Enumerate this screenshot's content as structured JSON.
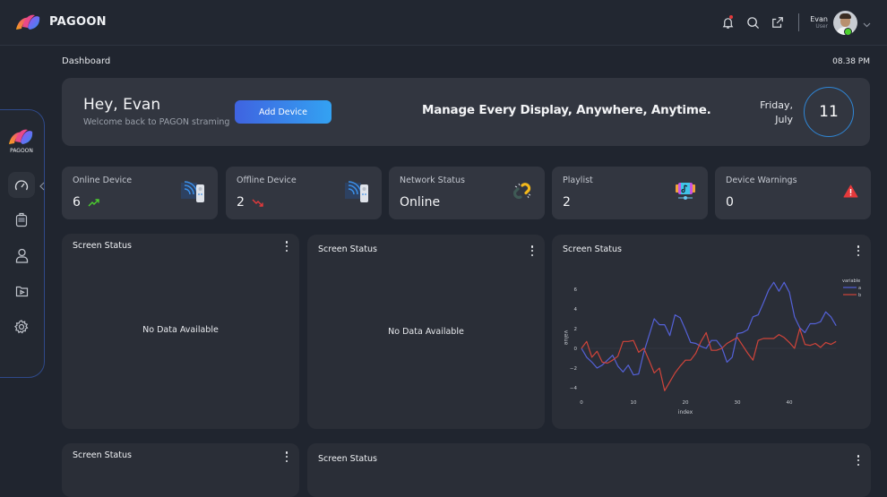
{
  "app": {
    "brand_name": "PAGOON",
    "sidebar_brand": "PAGOON"
  },
  "header": {
    "icons": [
      "bell-icon",
      "search-icon",
      "external-link-icon"
    ],
    "notification_dot_color": "#e5393b",
    "user": {
      "name": "Evan",
      "role": "User",
      "status_color": "#4ccf2e"
    }
  },
  "sidebar": {
    "items": [
      {
        "name": "dashboard",
        "icon": "speedometer-icon",
        "active": true
      },
      {
        "name": "devices",
        "icon": "device-icon",
        "active": false
      },
      {
        "name": "users",
        "icon": "user-icon",
        "active": false
      },
      {
        "name": "media",
        "icon": "media-folder-icon",
        "active": false
      },
      {
        "name": "settings",
        "icon": "gear-icon",
        "active": false
      }
    ]
  },
  "breadcrumb": "Dashboard",
  "clock": "08.38 PM",
  "hero": {
    "greeting": "Hey, Evan",
    "subtitle": "Welcome back to PAGON straming",
    "add_device_label": "Add Device",
    "tagline": "Manage Every Display, Anywhere, Anytime.",
    "day": "Friday,",
    "month": "July",
    "date": "11",
    "accent": "#2f86d6"
  },
  "stats": [
    {
      "label": "Online Device",
      "value": "6",
      "trend": "up",
      "trend_color": "#4ccf2e",
      "icon": "wifi-device-icon"
    },
    {
      "label": "Offline Device",
      "value": "2",
      "trend": "down",
      "trend_color": "#e5393b",
      "icon": "wifi-device-icon"
    },
    {
      "label": "Network Status",
      "value": "Online",
      "icon": "broken-link-icon"
    },
    {
      "label": "Playlist",
      "value": "2",
      "icon": "playlist-music-icon"
    },
    {
      "label": "Device Warnings",
      "value": "0",
      "icon": "warning-triangle-icon",
      "icon_color": "#e5393b"
    }
  ],
  "cards": [
    {
      "title": "Screen Status",
      "content": "No Data Available"
    },
    {
      "title": "Screen Status",
      "content": "No Data Available"
    },
    {
      "title": "Screen Status",
      "content": "chart"
    },
    {
      "title": "Screen Status",
      "content": ""
    },
    {
      "title": "Screen Status",
      "content": ""
    }
  ],
  "chart_data": {
    "type": "line",
    "title": "Screen Status",
    "xlabel": "index",
    "ylabel": "value",
    "xlim": [
      0,
      49
    ],
    "ylim": [
      -4.5,
      7
    ],
    "xticks": [
      0,
      10,
      20,
      30,
      40
    ],
    "yticks": [
      -4,
      -2,
      0,
      2,
      4,
      6
    ],
    "grid": false,
    "legend": {
      "title": "variable",
      "position": "top-right",
      "entries": [
        "a",
        "b"
      ]
    },
    "x": [
      0,
      1,
      2,
      3,
      4,
      5,
      6,
      7,
      8,
      9,
      10,
      11,
      12,
      13,
      14,
      15,
      16,
      17,
      18,
      19,
      20,
      21,
      22,
      23,
      24,
      25,
      26,
      27,
      28,
      29,
      30,
      31,
      32,
      33,
      34,
      35,
      36,
      37,
      38,
      39,
      40,
      41,
      42,
      43,
      44,
      45,
      46,
      47,
      48,
      49
    ],
    "series": [
      {
        "name": "a",
        "color": "#5461d8",
        "values": [
          0,
          -0.9,
          -1.4,
          -2.0,
          -1.7,
          -1.2,
          -0.7,
          -1.8,
          -2.4,
          -1.7,
          -2.7,
          -2.6,
          -0.4,
          1.3,
          3.0,
          2.4,
          2.4,
          1.3,
          3.4,
          3.1,
          1.9,
          0.6,
          0.5,
          0.2,
          0.0,
          0.8,
          0.8,
          0.1,
          -1.4,
          -0.9,
          1.5,
          1.6,
          1.9,
          3.2,
          3.4,
          4.6,
          5.9,
          6.7,
          5.8,
          6.7,
          5.7,
          3.2,
          2.1,
          1.6,
          2.5,
          2.5,
          2.7,
          3.7,
          3.2,
          2.3
        ]
      },
      {
        "name": "b",
        "color": "#d1443a",
        "values": [
          0,
          0.7,
          -0.9,
          -0.3,
          -1.4,
          -1.5,
          -1.2,
          -0.8,
          0.7,
          0.7,
          0.8,
          -0.4,
          0.0,
          -1.2,
          -2.5,
          -2.0,
          -4.3,
          -3.4,
          -2.5,
          -1.8,
          -1.2,
          -1.2,
          -0.5,
          0.7,
          1.6,
          -0.2,
          -0.2,
          0.0,
          0.5,
          0.8,
          1.1,
          0.3,
          -0.5,
          -1.2,
          0.8,
          1.0,
          1.0,
          1.0,
          1.4,
          1.1,
          0.6,
          0.0,
          2.0,
          0.4,
          0.3,
          0.5,
          0.1,
          0.6,
          0.4,
          0.7
        ]
      }
    ]
  }
}
